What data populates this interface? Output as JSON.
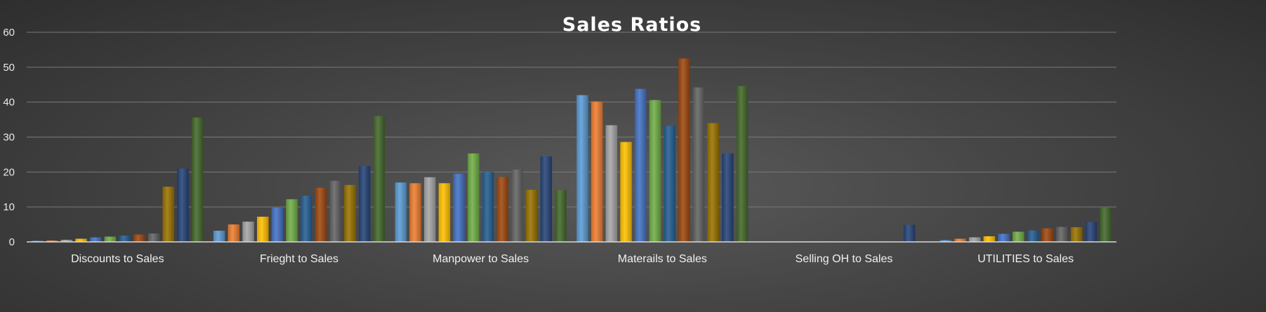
{
  "chart_data": {
    "type": "bar",
    "title": "Sales Ratios",
    "xlabel": "",
    "ylabel": "",
    "ylim": [
      0,
      60
    ],
    "yticks": [
      0,
      10,
      20,
      30,
      40,
      50,
      60
    ],
    "grid": true,
    "legend": "none",
    "categories": [
      "Discounts to Sales",
      "Frieght to Sales",
      "Manpower to Sales",
      "Materails to Sales",
      "Selling OH to Sales",
      "UTILITIES to Sales"
    ],
    "series_colors": [
      "#5b9bd5",
      "#ed7d31",
      "#a5a5a5",
      "#ffc000",
      "#4472c4",
      "#70ad47",
      "#255e91",
      "#9e480e",
      "#636363",
      "#997300",
      "#264478",
      "#43682b"
    ],
    "series": [
      {
        "values": [
          0.3,
          3.2,
          17.0,
          42.0,
          0.0,
          0.5
        ]
      },
      {
        "values": [
          0.4,
          5.0,
          16.8,
          40.2,
          0.0,
          0.9
        ]
      },
      {
        "values": [
          0.6,
          5.8,
          18.5,
          33.4,
          0.0,
          1.3
        ]
      },
      {
        "values": [
          0.9,
          7.2,
          16.8,
          28.6,
          0.0,
          1.6
        ]
      },
      {
        "values": [
          1.3,
          9.8,
          19.5,
          43.8,
          0.0,
          2.3
        ]
      },
      {
        "values": [
          1.5,
          12.2,
          25.3,
          40.6,
          0.0,
          2.9
        ]
      },
      {
        "values": [
          1.8,
          13.2,
          20.0,
          33.2,
          0.0,
          3.3
        ]
      },
      {
        "values": [
          2.1,
          15.5,
          18.6,
          52.5,
          0.0,
          3.9
        ]
      },
      {
        "values": [
          2.4,
          17.5,
          20.7,
          44.2,
          0.0,
          4.3
        ]
      },
      {
        "values": [
          15.8,
          16.3,
          14.9,
          34.0,
          0.0,
          4.2
        ]
      },
      {
        "values": [
          21.0,
          21.7,
          24.5,
          25.3,
          4.9,
          5.7
        ]
      },
      {
        "values": [
          35.6,
          36.0,
          14.8,
          44.6,
          0.0,
          9.8
        ]
      }
    ]
  }
}
